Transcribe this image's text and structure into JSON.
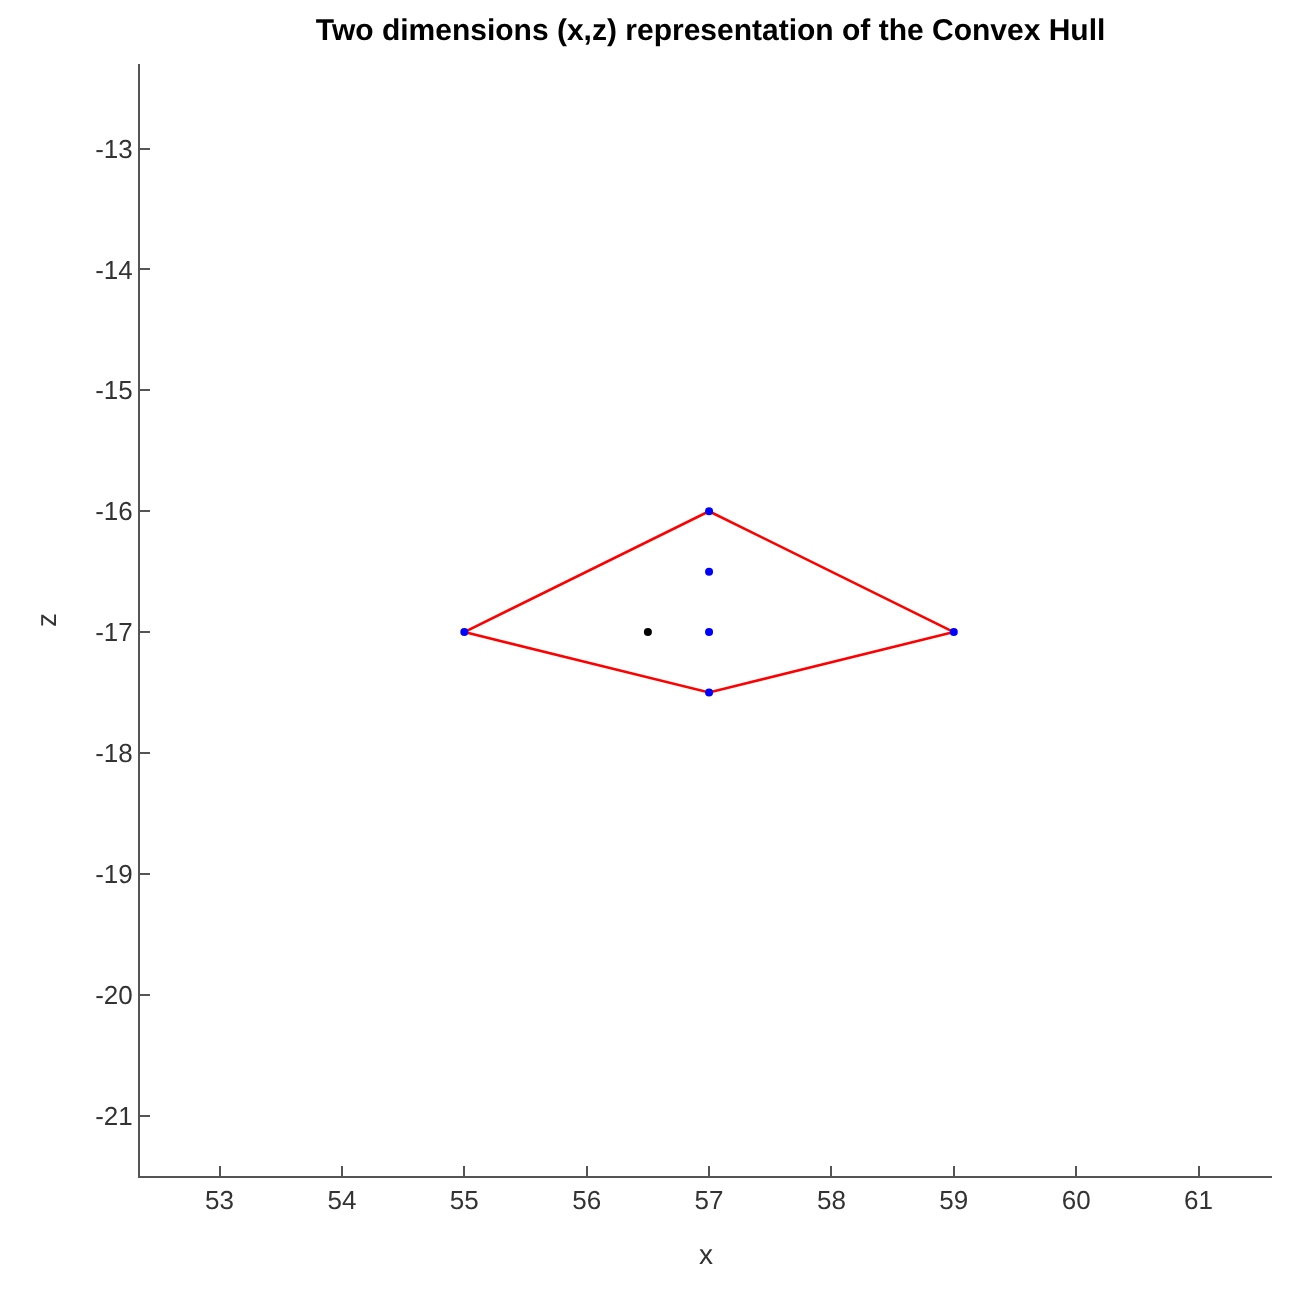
{
  "chart_data": {
    "type": "scatter",
    "title": "Two dimensions (x,z) representation of the Convex Hull",
    "xlabel": "x",
    "ylabel": "z",
    "series": [
      {
        "type": "line",
        "color": "#ff0000",
        "x": [
          55,
          57,
          59
        ],
        "values": [
          -17,
          -16,
          -17
        ],
        "marker": "none"
      },
      {
        "type": "line",
        "color": "#ff0000",
        "x": [
          55,
          57,
          59
        ],
        "values": [
          -17,
          -17.5,
          -17
        ],
        "marker": "none"
      },
      {
        "color": "#0000ff",
        "x": [
          55,
          57,
          59,
          57,
          57,
          57
        ],
        "values": [
          -17,
          -16,
          -17,
          -17.5,
          -16.5,
          -17
        ],
        "marker": "circle"
      },
      {
        "color": "#000000",
        "x": [
          56.5
        ],
        "values": [
          -17
        ],
        "marker": "circle"
      }
    ],
    "xlim": [
      52.35,
      61.6
    ],
    "ylim": [
      -21.5,
      -12.3
    ],
    "xticks": [
      53,
      54,
      55,
      56,
      57,
      58,
      59,
      60,
      61
    ],
    "yticks": [
      -21,
      -20,
      -19,
      -18,
      -17,
      -16,
      -15,
      -14,
      -13
    ]
  }
}
